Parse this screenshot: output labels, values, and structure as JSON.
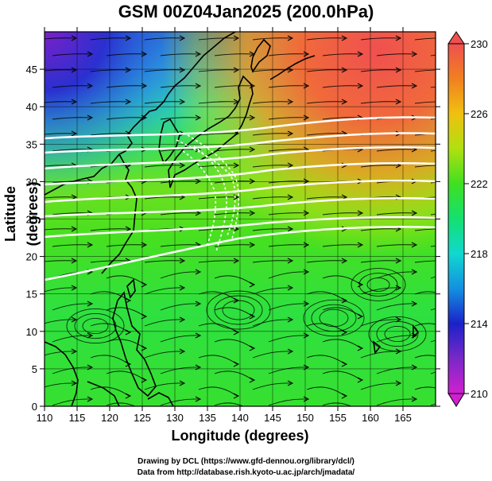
{
  "title": "GSM 00Z04Jan2025 (200.0hPa)",
  "xlabel": "Longitude (degrees)",
  "ylabel": "Latitude  (degrees)",
  "credit_line1": "Drawing by DCL (https://www.gfd-dennou.org/library/dcl/)",
  "credit_line2": "Data from http://database.rish.kyoto-u.ac.jp/arch/jmadata/",
  "map": {
    "lon_range": [
      110,
      170
    ],
    "lat_range": [
      0,
      50
    ],
    "x_ticks": [
      110,
      115,
      120,
      125,
      130,
      135,
      140,
      145,
      150,
      155,
      160,
      165
    ],
    "y_ticks": [
      0,
      5,
      10,
      15,
      20,
      25,
      30,
      35,
      40,
      45
    ],
    "shaded_field": "temperature (K)",
    "overlays": [
      "streamlines",
      "isotach contours (white)",
      "coastlines"
    ]
  },
  "colorbar": {
    "min": 210,
    "max": 230,
    "tick_labels": [
      "230",
      "226",
      "222",
      "218",
      "214",
      "210"
    ],
    "colors": [
      "#d020d0",
      "#7a28c8",
      "#1a22c8",
      "#1490e0",
      "#10d8d0",
      "#14e070",
      "#40e020",
      "#b0e010",
      "#f0c010",
      "#f08020",
      "#f05050"
    ]
  }
}
